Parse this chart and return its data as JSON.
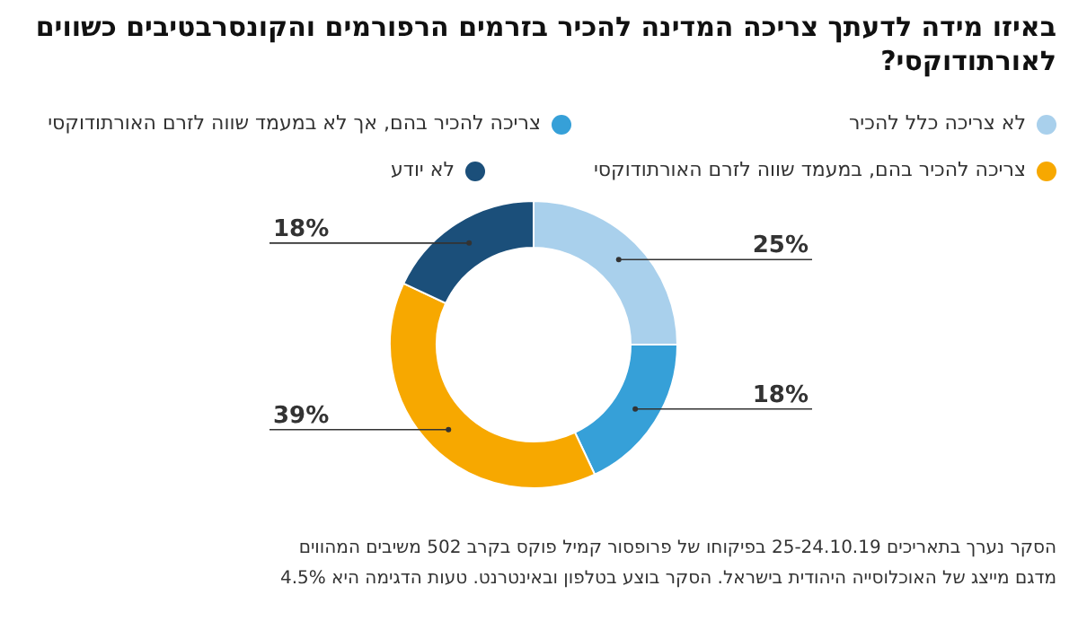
{
  "chart_data": {
    "type": "donut",
    "title": "באיזו מידה לדעתך צריכה המדינה להכיר בזרמים הרפורמים והקונסרבטיבים כשווים לאורתודוקסי?",
    "categories": [
      "לא צריכה כלל להכיר",
      "צריכה להכיר בהם, אך לא במעמד שווה לזרם האורתודוקסי",
      "צריכה להכיר בהם, במעמד שווה לזרם האורתודוקסי",
      "לא יודע"
    ],
    "values": [
      25,
      18,
      39,
      18
    ],
    "value_labels": [
      "25%",
      "18%",
      "39%",
      "18%"
    ],
    "colors": [
      "#a9d0ec",
      "#36a0d8",
      "#f7a800",
      "#1b4f7a"
    ],
    "legend": "top",
    "annotations": [
      "הסקר נערך בתאריכים 25-24.10.19 בפיקוחו של פרופסור קמיל פוקס בקרב 502 משיבים המהווים",
      "מדגם מייצג של האוכלוסייה היהודית בישראל. הסקר בוצע בטלפון ובאינטרנט. טעות הדגימה היא 4.5%"
    ]
  }
}
